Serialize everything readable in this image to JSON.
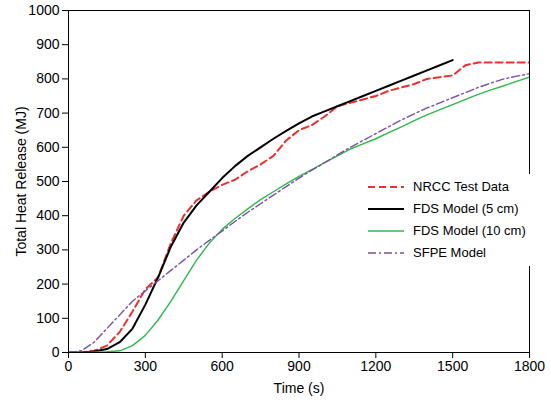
{
  "chart_data": {
    "type": "line",
    "x_label": "Time (s)",
    "y_label": "Total Heat Release (MJ)",
    "xlim": [
      0,
      1800
    ],
    "xticks": [
      0,
      300,
      600,
      900,
      1200,
      1500,
      1800
    ],
    "ylim": [
      0,
      1000
    ],
    "yticks": [
      0,
      100,
      200,
      300,
      400,
      500,
      600,
      700,
      800,
      900,
      1000
    ],
    "grid": false,
    "legend": "right",
    "x": [
      0,
      50,
      100,
      150,
      200,
      250,
      300,
      350,
      400,
      450,
      500,
      550,
      600,
      650,
      700,
      750,
      800,
      850,
      900,
      950,
      1000,
      1050,
      1100,
      1150,
      1200,
      1250,
      1300,
      1350,
      1400,
      1450,
      1500,
      1550,
      1600,
      1650,
      1700,
      1750,
      1800
    ],
    "series": [
      {
        "name": "NRCC Test Data",
        "color": "#e8302f",
        "line_style": "dashed",
        "values": [
          0,
          0,
          5,
          20,
          60,
          120,
          185,
          220,
          320,
          400,
          445,
          470,
          490,
          505,
          530,
          550,
          575,
          620,
          650,
          665,
          690,
          720,
          730,
          740,
          750,
          765,
          775,
          785,
          800,
          805,
          810,
          840,
          848,
          848,
          848,
          848,
          848
        ]
      },
      {
        "name": "FDS Model (5 cm)",
        "color": "#000000",
        "line_style": "solid",
        "values": [
          0,
          0,
          3,
          10,
          30,
          70,
          140,
          220,
          310,
          380,
          430,
          470,
          510,
          545,
          575,
          600,
          625,
          648,
          670,
          690,
          705,
          720,
          735,
          750,
          765,
          780,
          795,
          810,
          825,
          840,
          855,
          null,
          null,
          null,
          null,
          null,
          null
        ]
      },
      {
        "name": "FDS Model (10 cm)",
        "color": "#2eb84a",
        "line_style": "solid",
        "values": [
          0,
          0,
          1,
          2,
          5,
          20,
          50,
          95,
          150,
          210,
          270,
          320,
          360,
          392,
          420,
          447,
          470,
          493,
          515,
          535,
          555,
          575,
          595,
          610,
          625,
          643,
          660,
          678,
          695,
          710,
          725,
          740,
          755,
          768,
          780,
          793,
          805
        ]
      },
      {
        "name": "SFPE Model",
        "color": "#7b4fa0",
        "line_style": "dashdot",
        "values": [
          0,
          5,
          30,
          70,
          110,
          150,
          180,
          210,
          240,
          270,
          300,
          328,
          355,
          383,
          410,
          435,
          460,
          485,
          510,
          533,
          555,
          578,
          600,
          620,
          640,
          660,
          680,
          698,
          715,
          730,
          745,
          760,
          775,
          788,
          800,
          808,
          815
        ]
      }
    ]
  }
}
